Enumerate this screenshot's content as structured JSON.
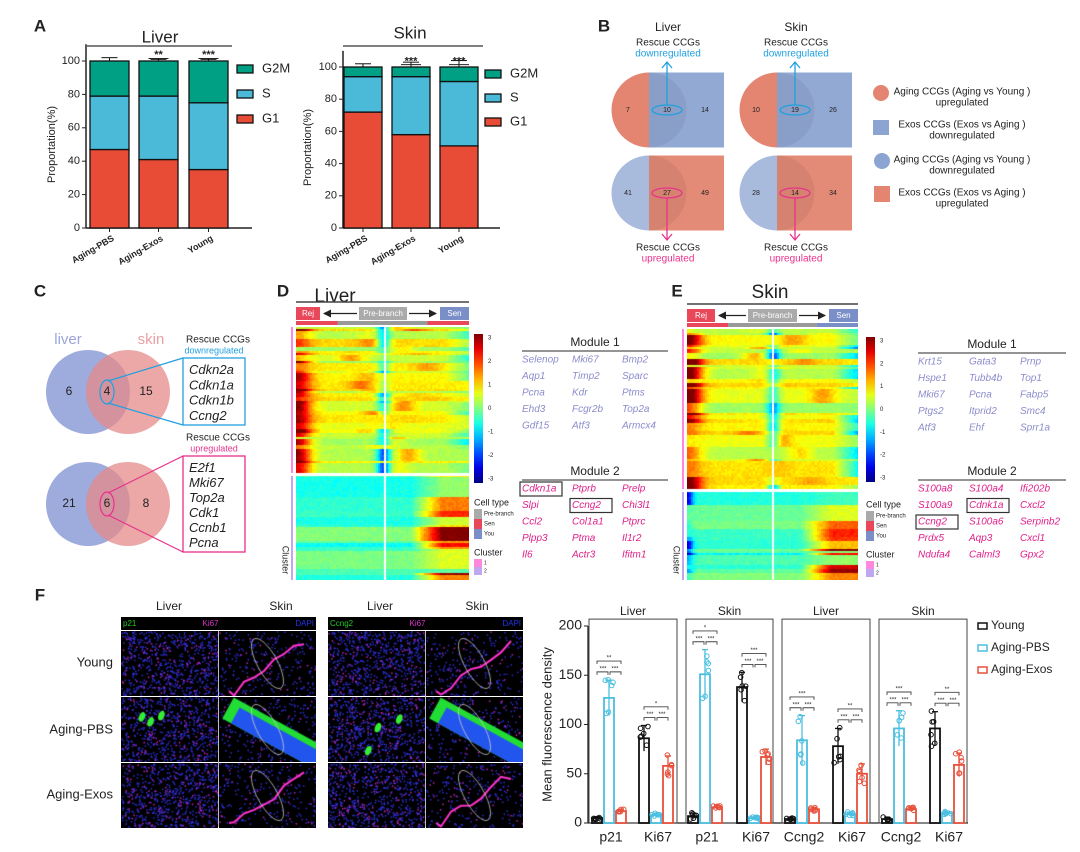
{
  "panel_labels": {
    "A": "A",
    "B": "B",
    "C": "C",
    "D": "D",
    "E": "E",
    "F": "F"
  },
  "colors": {
    "G1": "#e84c36",
    "S": "#4bb9d8",
    "G2M": "#00a084",
    "venn_orange": "#e38570",
    "venn_blue": "#8ca4d2",
    "up_pink": "#e8318c",
    "down_blue": "#1fa0e0",
    "module1": "#8c8ccc",
    "module2": "#e0208a",
    "young": "#111111",
    "aging_pbs": "#4bbfe0",
    "aging_exos": "#e8503c"
  },
  "chart_data": [
    {
      "type": "bar",
      "stacked": true,
      "title": "Liver",
      "ylabel": "Proportation(%)",
      "xlabel": "",
      "ylim": [
        0,
        100
      ],
      "yticks": [
        "0",
        "20",
        "40",
        "60",
        "80",
        "100"
      ],
      "categories": [
        "Aging-PBS",
        "Aging-Exos",
        "Young"
      ],
      "significance": [
        "",
        "**",
        "***"
      ],
      "series": [
        {
          "name": "G1",
          "values": [
            47,
            41,
            35
          ],
          "error": [
            3,
            1,
            2.5
          ]
        },
        {
          "name": "S",
          "values": [
            32,
            38,
            40
          ],
          "error": [
            1.5,
            1.5,
            3
          ]
        },
        {
          "name": "G2M",
          "values": [
            21,
            21,
            25
          ],
          "error": [
            2,
            1,
            1
          ]
        }
      ],
      "legend": [
        "G2M",
        "S",
        "G1"
      ],
      "legend_position": "right"
    },
    {
      "type": "bar",
      "stacked": true,
      "title": "Skin",
      "ylabel": "Proportation(%)",
      "xlabel": "",
      "ylim": [
        0,
        100
      ],
      "yticks": [
        "0",
        "20",
        "40",
        "60",
        "80",
        "100"
      ],
      "categories": [
        "Aging-PBS",
        "Aging-Exos",
        "Young"
      ],
      "significance": [
        "",
        "***",
        "***"
      ],
      "series": [
        {
          "name": "G1",
          "values": [
            72,
            58,
            51
          ],
          "error": [
            3,
            5,
            5
          ]
        },
        {
          "name": "S",
          "values": [
            22,
            36,
            40
          ],
          "error": [
            1,
            3,
            4
          ]
        },
        {
          "name": "G2M",
          "values": [
            6,
            6,
            9
          ],
          "error": [
            2,
            3,
            4
          ]
        }
      ],
      "legend": [
        "G2M",
        "S",
        "G1"
      ],
      "legend_position": "right"
    },
    {
      "type": "bar",
      "ylabel": "Mean fluorescence density",
      "ylim": [
        0,
        200
      ],
      "yticks": [
        "0",
        "50",
        "100",
        "150",
        "200"
      ],
      "series_names": [
        "Young",
        "Aging-PBS",
        "Aging-Exos"
      ],
      "legend_position": "top-right",
      "panels": [
        {
          "title": "Liver",
          "groups": [
            {
              "label": "p21",
              "values": [
                5,
                127,
                12
              ],
              "sd": [
                1.5,
                18,
                2
              ],
              "sig": {
                "top": "**",
                "left": "***",
                "right": "***"
              }
            },
            {
              "label": "Ki67",
              "values": [
                86,
                8,
                58
              ],
              "sd": [
                13,
                2,
                10
              ],
              "sig": {
                "top": "*",
                "left": "***",
                "right": "***"
              }
            }
          ]
        },
        {
          "title": "Skin",
          "groups": [
            {
              "label": "p21",
              "values": [
                7,
                151,
                16
              ],
              "sd": [
                3,
                25,
                2
              ],
              "sig": {
                "top": "*",
                "left": "***",
                "right": "***"
              }
            },
            {
              "label": "Ki67",
              "values": [
                138,
                5,
                67
              ],
              "sd": [
                15,
                1,
                8
              ],
              "sig": {
                "top": "***",
                "left": "***",
                "right": "***"
              }
            }
          ]
        },
        {
          "title": "Liver",
          "groups": [
            {
              "label": "Ccng2",
              "values": [
                4,
                84,
                14
              ],
              "sd": [
                1,
                25,
                2
              ],
              "sig": {
                "top": "***",
                "left": "***",
                "right": "***"
              }
            },
            {
              "label": "Ki67",
              "values": [
                78,
                9,
                50
              ],
              "sd": [
                18,
                2,
                10
              ],
              "sig": {
                "top": "**",
                "left": "***",
                "right": "***"
              }
            }
          ]
        },
        {
          "title": "Skin",
          "groups": [
            {
              "label": "Ccng2",
              "values": [
                4,
                96,
                14
              ],
              "sd": [
                2,
                18,
                2
              ],
              "sig": {
                "top": "***",
                "left": "***",
                "right": "***"
              }
            },
            {
              "label": "Ki67",
              "values": [
                96,
                10,
                59
              ],
              "sd": [
                17,
                2,
                12
              ],
              "sig": {
                "top": "**",
                "left": "***",
                "right": "***"
              }
            }
          ]
        }
      ]
    }
  ],
  "panel_b": {
    "venns": [
      {
        "tissue": "Liver",
        "down": {
          "left": "7",
          "overlap": "10",
          "right": "14"
        },
        "up": {
          "left": "41",
          "overlap": "27",
          "right": "49"
        }
      },
      {
        "tissue": "Skin",
        "down": {
          "left": "10",
          "overlap": "19",
          "right": "26"
        },
        "up": {
          "left": "28",
          "overlap": "14",
          "right": "34"
        }
      }
    ],
    "rescue_label": "Rescue CCGs",
    "down_label": "downregulated",
    "up_label": "upregulated",
    "legend": [
      {
        "line1": "Aging CCGs (Aging vs Young )",
        "line2": "upregulated"
      },
      {
        "line1": "Exos CCGs (Exos vs Aging )",
        "line2": "downregulated"
      },
      {
        "line1": "Aging CCGs (Aging vs Young )",
        "line2": "downregulated"
      },
      {
        "line1": "Exos CCGs (Exos vs Aging )",
        "line2": "upregulated"
      }
    ]
  },
  "panel_c": {
    "liver_label": "liver",
    "skin_label": "skin",
    "down": {
      "liver_only": "6",
      "overlap": "4",
      "skin_only": "15",
      "title": "Rescue CCGs",
      "subtitle": "downregulated",
      "genes": [
        "Cdkn2a",
        "Cdkn1a",
        "Cdkn1b",
        "Ccng2"
      ]
    },
    "up": {
      "liver_only": "21",
      "overlap": "6",
      "skin_only": "8",
      "title": "Rescue CCGs",
      "subtitle": "upregulated",
      "genes": [
        "E2f1",
        "Mki67",
        "Top2a",
        "Cdk1",
        "Ccnb1",
        "Pcna"
      ]
    }
  },
  "heatmaps": [
    {
      "title": "Liver",
      "rej": "Rej",
      "pre": "Pre-branch",
      "sen": "Sen",
      "colorbar_ticks": [
        "3",
        "2",
        "1",
        "0",
        "-1",
        "-2",
        "-3"
      ],
      "cell_type_title": "Cell type",
      "cell_types": [
        "Pre-branch",
        "Sen",
        "You"
      ],
      "cluster_title": "Cluster",
      "clusters": [
        "1",
        "2"
      ],
      "cluster_axis": "Cluster",
      "module1": {
        "title": "Module 1",
        "rows": [
          [
            "Selenop",
            "Mki67",
            "Bmp2"
          ],
          [
            "Aqp1",
            "Timp2",
            "Sparc"
          ],
          [
            "Pcna",
            "Kdr",
            "Ptms"
          ],
          [
            "Ehd3",
            "Fcgr2b",
            "Top2a"
          ],
          [
            "Gdf15",
            "Atf3",
            "Armcx4"
          ]
        ]
      },
      "module2": {
        "title": "Module 2",
        "rows": [
          [
            "Cdkn1a",
            "Ptprb",
            "Prelp"
          ],
          [
            "Slpi",
            "Ccng2",
            "Chi3l1"
          ],
          [
            "Ccl2",
            "Col1a1",
            "Ptprc"
          ],
          [
            "Plpp3",
            "Ptma",
            "Il1r2"
          ],
          [
            "Il6",
            "Actr3",
            "Ifitm1"
          ]
        ],
        "boxed": [
          "Cdkn1a",
          "Ccng2"
        ]
      }
    },
    {
      "title": "Skin",
      "rej": "Rej",
      "pre": "Pre-branch",
      "sen": "Sen",
      "colorbar_ticks": [
        "3",
        "2",
        "1",
        "0",
        "-1",
        "-2",
        "-3"
      ],
      "cell_type_title": "Cell type",
      "cell_types": [
        "Pre-branch",
        "Sen",
        "You"
      ],
      "cluster_title": "Cluster",
      "clusters": [
        "1",
        "2"
      ],
      "cluster_axis": "Cluster",
      "module1": {
        "title": "Module 1",
        "rows": [
          [
            "Krt15",
            "Gata3",
            "Prnp"
          ],
          [
            "Hspe1",
            "Tubb4b",
            "Top1"
          ],
          [
            "Mki67",
            "Pcna",
            "Fabp5"
          ],
          [
            "Ptgs2",
            "Itprid2",
            "Smc4"
          ],
          [
            "Atf3",
            "Ehf",
            "Sprr1a"
          ]
        ]
      },
      "module2": {
        "title": "Module 2",
        "rows": [
          [
            "S100a8",
            "S100a4",
            "Ifi202b"
          ],
          [
            "S100a9",
            "Cdnk1a",
            "Cxcl2"
          ],
          [
            "Ccng2",
            "S100a6",
            "Serpinb2"
          ],
          [
            "Prdx5",
            "Aqp3",
            "Cxcl1"
          ],
          [
            "Ndufa4",
            "Calml3",
            "Gpx2"
          ]
        ],
        "boxed": [
          "Cdnk1a",
          "Ccng2"
        ]
      }
    }
  ],
  "panel_f": {
    "column_headers": [
      "Liver",
      "Skin",
      "Liver",
      "Skin"
    ],
    "row_labels": [
      "Young",
      "Aging-PBS",
      "Aging-Exos"
    ],
    "stain_sets": [
      [
        "p21",
        "Ki67",
        "DAPI"
      ],
      [
        "Ccng2",
        "Ki67",
        "DAPI"
      ]
    ]
  }
}
